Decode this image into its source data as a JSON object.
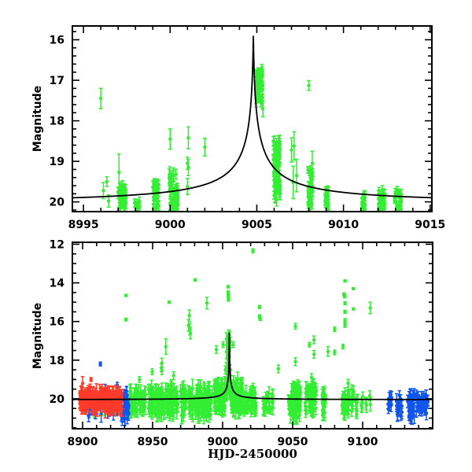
{
  "chart_data": [
    {
      "type": "scatter",
      "panel": "top",
      "title": "",
      "xlabel": "",
      "ylabel": "Magnitude",
      "xlim": [
        8994.36,
        9015.1
      ],
      "ylim": [
        20.24,
        15.66
      ],
      "y_inverted": true,
      "xticks": [
        8995,
        9000,
        9005,
        9010,
        9015
      ],
      "xtick_labels": [
        "8995",
        "9000",
        "9005",
        "9010",
        "9015"
      ],
      "x_minor_step": 1,
      "yticks": [
        16,
        17,
        18,
        19,
        20
      ],
      "ytick_labels": [
        "16",
        "17",
        "18",
        "19",
        "20"
      ],
      "y_minor_step": 0.2,
      "grid": false,
      "model": {
        "name": "microlensing model",
        "color": "#000000",
        "t0": 9004.8,
        "peak_mag": 15.9,
        "baseline_mag": 20.05,
        "u0": 0.012,
        "tE": 20
      },
      "series": [
        {
          "name": "green",
          "color": "#33ee33",
          "points": [
            [
              8996.0,
              17.45,
              0.25
            ],
            [
              8996.15,
              19.72,
              0.2
            ],
            [
              8996.35,
              19.5,
              0.12
            ],
            [
              8996.45,
              19.98,
              0.15
            ],
            [
              8997.05,
              19.27,
              0.45
            ],
            [
              9000.0,
              18.45,
              0.25
            ],
            [
              9001.05,
              18.42,
              0.27
            ],
            [
              9002.0,
              18.65,
              0.22
            ],
            [
              9008.0,
              17.13,
              0.12
            ],
            [
              9001.0,
              19.05,
              0.15
            ],
            [
              9001.05,
              19.15,
              0.2
            ],
            [
              9001.0,
              19.62,
              0.2
            ],
            [
              9007.0,
              18.72,
              0.3
            ],
            [
              9007.15,
              18.62,
              0.35
            ],
            [
              9007.1,
              19.52,
              0.4
            ],
            [
              9007.3,
              19.35,
              0.4
            ],
            [
              9005.35,
              17.7,
              0.2
            ],
            [
              9008.2,
              19.05,
              0.3
            ]
          ],
          "clusters": [
            {
              "x": [
                8997.0,
                8997.45
              ],
              "y": [
                19.55,
                20.25
              ],
              "n": 40,
              "err": 0.12
            },
            {
              "x": [
                8997.95,
                8998.35
              ],
              "y": [
                19.95,
                20.25
              ],
              "n": 10,
              "err": 0.1
            },
            {
              "x": [
                8998.95,
                8999.35
              ],
              "y": [
                19.55,
                20.25
              ],
              "n": 30,
              "err": 0.12
            },
            {
              "x": [
                8999.95,
                9000.45
              ],
              "y": [
                19.3,
                20.25
              ],
              "n": 50,
              "err": 0.15
            },
            {
              "x": [
                9004.95,
                9005.35
              ],
              "y": [
                16.7,
                17.6
              ],
              "n": 45,
              "err": 0.1
            },
            {
              "x": [
                9005.95,
                9006.35
              ],
              "y": [
                18.5,
                19.95
              ],
              "n": 70,
              "err": 0.12
            },
            {
              "x": [
                9007.95,
                9008.25
              ],
              "y": [
                19.2,
                20.2
              ],
              "n": 30,
              "err": 0.12
            },
            {
              "x": [
                9008.95,
                9009.15
              ],
              "y": [
                19.6,
                20.2
              ],
              "n": 20,
              "err": 0.1
            },
            {
              "x": [
                9011.05,
                9011.25
              ],
              "y": [
                19.8,
                20.2
              ],
              "n": 15,
              "err": 0.1
            },
            {
              "x": [
                9012.0,
                9012.4
              ],
              "y": [
                19.7,
                20.25
              ],
              "n": 25,
              "err": 0.1
            },
            {
              "x": [
                9012.95,
                9013.35
              ],
              "y": [
                19.65,
                20.25
              ],
              "n": 25,
              "err": 0.1
            }
          ]
        }
      ]
    },
    {
      "type": "scatter",
      "panel": "bottom",
      "title": "",
      "xlabel": "HJD-2450000",
      "ylabel": "Magnitude",
      "xlim": [
        8892.7,
        9150
      ],
      "ylim": [
        21.55,
        11.9
      ],
      "y_inverted": true,
      "xticks": [
        8900,
        8950,
        9000,
        9050,
        9100
      ],
      "xtick_labels": [
        "8900",
        "8950",
        "9000",
        "9050",
        "9100"
      ],
      "x_minor_step": 10,
      "yticks": [
        12,
        14,
        16,
        18,
        20
      ],
      "ytick_labels": [
        "12",
        "14",
        "16",
        "18",
        "20"
      ],
      "y_minor_step": 0.5,
      "grid": false,
      "model": {
        "name": "microlensing model",
        "color": "#000000",
        "t0": 9004.8,
        "peak_mag": 15.9,
        "baseline_mag": 20.05,
        "u0": 0.012,
        "tE": 20
      },
      "series": [
        {
          "name": "green",
          "color": "#33ee33",
          "points": [
            [
              9021.7,
              12.34,
              0.1
            ],
            [
              8931.0,
              14.65,
              0.05
            ],
            [
              8931.0,
              15.9,
              0.07
            ],
            [
              8961.8,
              15.0,
              0.05
            ],
            [
              8980.4,
              13.85,
              0.06
            ],
            [
              8988.8,
              15.05,
              0.3
            ],
            [
              9004.0,
              14.2,
              0.06
            ],
            [
              9004.0,
              14.5,
              0.08
            ],
            [
              9004.0,
              14.65,
              0.08
            ],
            [
              9004.2,
              14.85,
              0.1
            ],
            [
              9004.2,
              14.75,
              0.1
            ],
            [
              8976.2,
              15.7,
              0.3
            ],
            [
              8975.6,
              16.2,
              0.3
            ],
            [
              8976.6,
              16.4,
              0.3
            ],
            [
              8977.0,
              16.6,
              0.3
            ],
            [
              8959.4,
              17.3,
              0.4
            ],
            [
              8956.6,
              18.15,
              0.25
            ],
            [
              8956.3,
              18.4,
              0.2
            ],
            [
              8956.6,
              18.55,
              0.2
            ],
            [
              8949.7,
              18.6,
              0.15
            ],
            [
              8940.6,
              19.0,
              0.15
            ],
            [
              8965.0,
              18.8,
              0.2
            ],
            [
              8963.6,
              19.2,
              0.2
            ],
            [
              8995.5,
              17.45,
              0.2
            ],
            [
              9026.4,
              15.25,
              0.08
            ],
            [
              9026.4,
              15.75,
              0.1
            ],
            [
              9026.8,
              15.85,
              0.1
            ],
            [
              9052.0,
              16.25,
              0.15
            ],
            [
              9052.0,
              18.08,
              0.2
            ],
            [
              9039.8,
              18.45,
              0.2
            ],
            [
              9062.0,
              17.2,
              0.12
            ],
            [
              9065.2,
              16.95,
              0.2
            ],
            [
              9065.2,
              17.7,
              0.2
            ],
            [
              9075.2,
              17.55,
              0.25
            ],
            [
              9080.0,
              16.4,
              0.12
            ],
            [
              9080.0,
              17.6,
              0.12
            ],
            [
              9086.0,
              17.3,
              0.12
            ],
            [
              9087.4,
              13.9,
              0.05
            ],
            [
              9086.6,
              14.6,
              0.08
            ],
            [
              9087.2,
              14.7,
              0.08
            ],
            [
              9087.4,
              15.05,
              0.08
            ],
            [
              9087.4,
              15.5,
              0.08
            ],
            [
              9087.4,
              15.95,
              0.1
            ],
            [
              9087.4,
              16.2,
              0.1
            ],
            [
              9093.4,
              14.3,
              0.05
            ],
            [
              9093.4,
              15.35,
              0.05
            ],
            [
              9105.4,
              15.3,
              0.3
            ],
            [
              9021.7,
              19.4,
              0.2
            ],
            [
              9089.6,
              19.2,
              0.2
            ],
            [
              9000.3,
              17.2,
              0.15
            ],
            [
              9007.5,
              17.2,
              0.15
            ],
            [
              9003.2,
              18.15,
              0.2
            ],
            [
              9002.0,
              18.5,
              0.2
            ],
            [
              9063.5,
              18.9,
              0.2
            ],
            [
              9064.5,
              19.15,
              0.2
            ]
          ],
          "clusters": [
            {
              "x": [
                8901,
                8928
              ],
              "y": [
                19.7,
                20.7
              ],
              "n": 40,
              "err": 0.3
            },
            {
              "x": [
                8932,
                8945
              ],
              "y": [
                19.6,
                20.7
              ],
              "n": 60,
              "err": 0.3
            },
            {
              "x": [
                8947,
                8968
              ],
              "y": [
                19.5,
                20.8
              ],
              "n": 110,
              "err": 0.35
            },
            {
              "x": [
                8970,
                8993
              ],
              "y": [
                19.4,
                20.9
              ],
              "n": 120,
              "err": 0.35
            },
            {
              "x": [
                8994,
                9002
              ],
              "y": [
                19.2,
                20.6
              ],
              "n": 60,
              "err": 0.3
            },
            {
              "x": [
                9002.5,
                9005.5
              ],
              "y": [
                16.7,
                19.8
              ],
              "n": 40,
              "err": 0.3
            },
            {
              "x": [
                9005.5,
                9014
              ],
              "y": [
                19.0,
                20.7
              ],
              "n": 80,
              "err": 0.3
            },
            {
              "x": [
                9014,
                9024
              ],
              "y": [
                19.6,
                20.6
              ],
              "n": 40,
              "err": 0.3
            },
            {
              "x": [
                9028,
                9036
              ],
              "y": [
                19.7,
                20.6
              ],
              "n": 20,
              "err": 0.3
            },
            {
              "x": [
                9047,
                9056
              ],
              "y": [
                19.4,
                21.0
              ],
              "n": 60,
              "err": 0.35
            },
            {
              "x": [
                9059,
                9067
              ],
              "y": [
                19.3,
                20.7
              ],
              "n": 50,
              "err": 0.3
            },
            {
              "x": [
                9071,
                9074
              ],
              "y": [
                19.6,
                20.9
              ],
              "n": 20,
              "err": 0.3
            },
            {
              "x": [
                9085,
                9097
              ],
              "y": [
                19.5,
                20.8
              ],
              "n": 40,
              "err": 0.3
            },
            {
              "x": [
                9099,
                9106
              ],
              "y": [
                19.8,
                20.6
              ],
              "n": 8,
              "err": 0.3
            },
            {
              "x": [
                9138,
                9146
              ],
              "y": [
                20.0,
                20.6
              ],
              "n": 6,
              "err": 0.2
            }
          ]
        },
        {
          "name": "blue",
          "color": "#1155ee",
          "points": [
            [
              8912.7,
              18.2,
              0.1
            ],
            [
              8924.7,
              19.3,
              0.15
            ],
            [
              8916.0,
              19.5,
              0.25
            ],
            [
              8905.0,
              20.5,
              0.3
            ],
            [
              8908.0,
              20.5,
              0.3
            ],
            [
              8922.0,
              20.8,
              0.3
            ]
          ],
          "clusters": [
            {
              "x": [
                8902,
                8926
              ],
              "y": [
                19.8,
                20.9
              ],
              "n": 25,
              "err": 0.3
            },
            {
              "x": [
                8927,
                8933
              ],
              "y": [
                19.6,
                21.0
              ],
              "n": 40,
              "err": 0.3
            },
            {
              "x": [
                9118,
                9121
              ],
              "y": [
                19.9,
                20.6
              ],
              "n": 10,
              "err": 0.25
            },
            {
              "x": [
                9124,
                9128
              ],
              "y": [
                19.8,
                20.9
              ],
              "n": 15,
              "err": 0.3
            },
            {
              "x": [
                9132,
                9137
              ],
              "y": [
                19.7,
                21.1
              ],
              "n": 25,
              "err": 0.3
            },
            {
              "x": [
                9138,
                9147
              ],
              "y": [
                19.8,
                20.8
              ],
              "n": 35,
              "err": 0.25
            }
          ]
        },
        {
          "name": "red",
          "color": "#ff3a2a",
          "points": [
            [
              8900.0,
              19.2,
              0.35
            ],
            [
              8906.0,
              19.0,
              0.1
            ]
          ],
          "clusters": [
            {
              "x": [
                8898,
                8928
              ],
              "y": [
                19.6,
                20.6
              ],
              "n": 180,
              "err": 0.3
            }
          ]
        }
      ]
    }
  ]
}
